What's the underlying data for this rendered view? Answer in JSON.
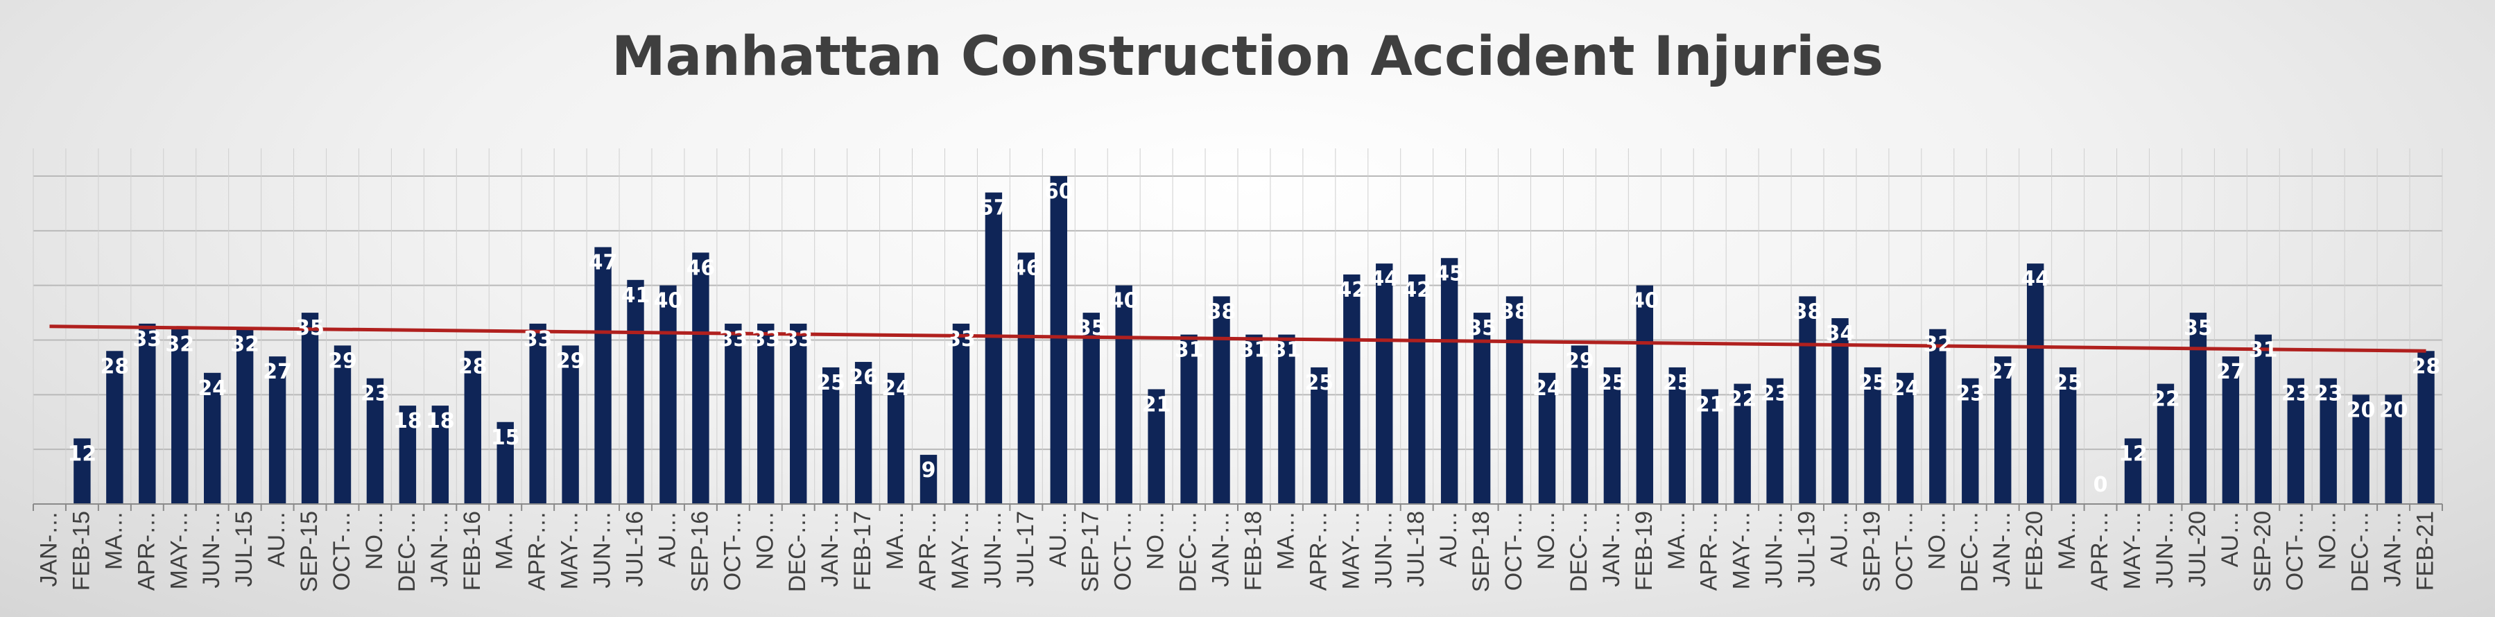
{
  "chart_data": {
    "type": "bar",
    "title": "Manhattan Construction Accident Injuries",
    "xlabel": "",
    "ylabel": "",
    "ylim": [
      0,
      60
    ],
    "grid": true,
    "legend": "none",
    "colors": {
      "bar": "#0f2557",
      "trend": "#b0201e",
      "grid": "#b9b9b9",
      "label": "#ffffff",
      "title": "#3f3f3f",
      "tick": "#404040"
    },
    "categories": [
      "JAN-…",
      "FEB-15",
      "MA…",
      "APR-…",
      "MAY-…",
      "JUN-…",
      "JUL-15",
      "AU…",
      "SEP-15",
      "OCT-…",
      "NO…",
      "DEC-…",
      "JAN-…",
      "FEB-16",
      "MA…",
      "APR-…",
      "MAY-…",
      "JUN-…",
      "JUL-16",
      "AU…",
      "SEP-16",
      "OCT-…",
      "NO…",
      "DEC-…",
      "JAN-…",
      "FEB-17",
      "MA…",
      "APR-…",
      "MAY-…",
      "JUN-…",
      "JUL-17",
      "AU…",
      "SEP-17",
      "OCT-…",
      "NO…",
      "DEC-…",
      "JAN-…",
      "FEB-18",
      "MA…",
      "APR-…",
      "MAY-…",
      "JUN-…",
      "JUL-18",
      "AU…",
      "SEP-18",
      "OCT-…",
      "NO…",
      "DEC-…",
      "JAN-…",
      "FEB-19",
      "MA…",
      "APR-…",
      "MAY-…",
      "JUN-…",
      "JUL-19",
      "AU…",
      "SEP-19",
      "OCT-…",
      "NO…",
      "DEC-…",
      "JAN-…",
      "FEB-20",
      "MA…",
      "APR-…",
      "MAY-…",
      "JUN-…",
      "JUL-20",
      "AU…",
      "SEP-20",
      "OCT-…",
      "NO…",
      "DEC-…",
      "JAN-…",
      "FEB-21"
    ],
    "values": [
      0,
      12,
      28,
      33,
      32,
      24,
      32,
      27,
      35,
      29,
      23,
      18,
      18,
      28,
      15,
      33,
      29,
      47,
      41,
      40,
      46,
      33,
      33,
      33,
      25,
      26,
      24,
      9,
      33,
      57,
      46,
      60,
      35,
      40,
      21,
      31,
      38,
      31,
      31,
      25,
      42,
      44,
      42,
      45,
      35,
      38,
      24,
      29,
      25,
      40,
      25,
      21,
      22,
      23,
      38,
      34,
      25,
      24,
      32,
      23,
      27,
      44,
      25,
      0,
      12,
      22,
      35,
      27,
      31,
      23,
      23,
      20,
      20,
      28
    ],
    "data_labels": [
      "",
      "12",
      "28",
      "33",
      "32",
      "24",
      "32",
      "27",
      "35",
      "29",
      "23",
      "18",
      "18",
      "28",
      "15",
      "33",
      "29",
      "47",
      "41",
      "40",
      "46",
      "33",
      "33",
      "33",
      "25",
      "26",
      "24",
      "9",
      "33",
      "57",
      "46",
      "60",
      "35",
      "40",
      "21",
      "31",
      "38",
      "31",
      "31",
      "25",
      "42",
      "44",
      "42",
      "45",
      "35",
      "38",
      "24",
      "29",
      "25",
      "40",
      "25",
      "21",
      "22",
      "23",
      "38",
      "34",
      "25",
      "24",
      "32",
      "23",
      "27",
      "44",
      "25",
      "0",
      "12",
      "22",
      "35",
      "27",
      "31",
      "23",
      "23",
      "20",
      "20",
      "28"
    ],
    "trendline": {
      "type": "linear",
      "start": 32.5,
      "end": 28
    }
  }
}
